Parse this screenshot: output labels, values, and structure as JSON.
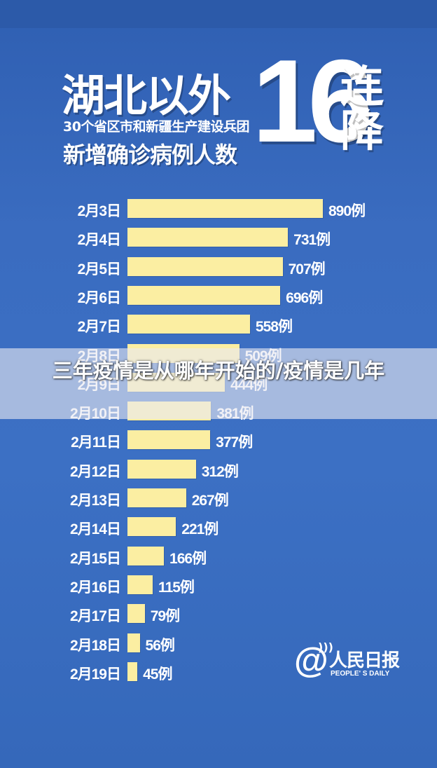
{
  "header": {
    "title_main": "湖北以外",
    "subtitle_line1": "30个省区市和新疆生产建设兵团",
    "subtitle_line2": "新增确诊病例人数",
    "big_number": "16",
    "side_text": [
      "连",
      "降"
    ]
  },
  "overlay": {
    "text": "三年疫情是从哪年开始的/疫情是几年"
  },
  "logo": {
    "cn": "人民日报",
    "en": "PEOPLE' S DAILY"
  },
  "colors": {
    "background": "#3a6cc0",
    "bar": "#fbeea2",
    "text": "#ffffff"
  },
  "chart_data": {
    "type": "bar",
    "orientation": "horizontal",
    "title": "湖北以外 30个省区市和新疆生产建设兵团 新增确诊病例人数 16连降",
    "xlabel": "",
    "ylabel": "",
    "categories": [
      "2月3日",
      "2月4日",
      "2月5日",
      "2月6日",
      "2月7日",
      "2月8日",
      "2月9日",
      "2月10日",
      "2月11日",
      "2月12日",
      "2月13日",
      "2月14日",
      "2月15日",
      "2月16日",
      "2月17日",
      "2月18日",
      "2月19日"
    ],
    "values": [
      890,
      731,
      707,
      696,
      558,
      509,
      444,
      381,
      377,
      312,
      267,
      221,
      166,
      115,
      79,
      56,
      45
    ],
    "value_labels": [
      "890例",
      "731例",
      "707例",
      "696例",
      "558例",
      "509例",
      "444例",
      "381例",
      "377例",
      "312例",
      "267例",
      "221例",
      "166例",
      "115例",
      "79例",
      "56例",
      "45例"
    ],
    "xlim": [
      0,
      890
    ],
    "grid": false,
    "legend": "none"
  }
}
